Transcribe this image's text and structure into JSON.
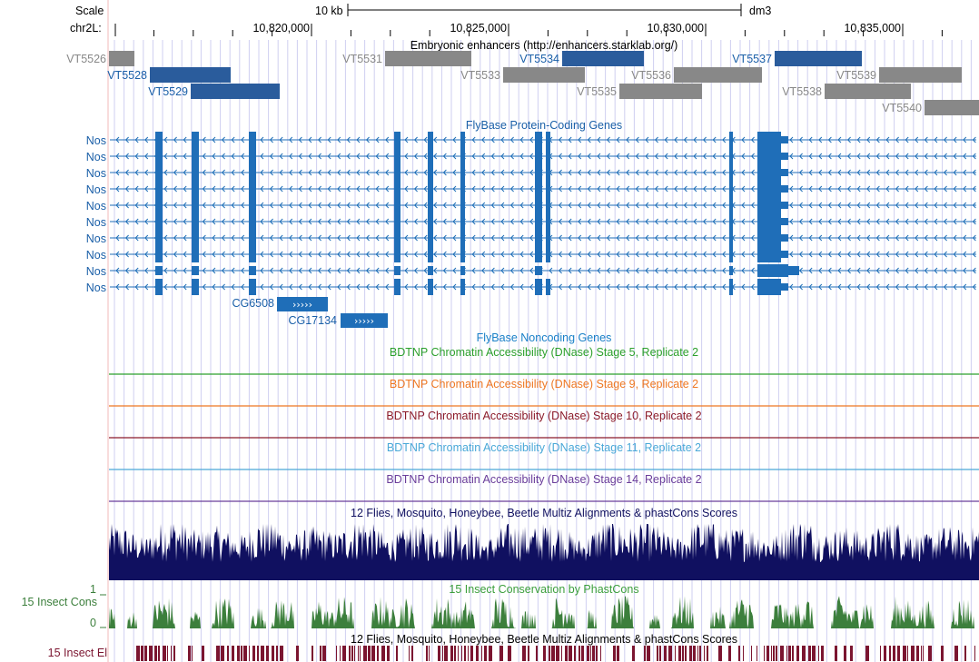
{
  "ruler": {
    "scale_label": "Scale",
    "chrom_label": "chr2L:",
    "scalebar_label": "10 kb",
    "assembly": "dm3",
    "positions": [
      "10,820,000",
      "10,825,000",
      "10,830,000",
      "10,835,000"
    ]
  },
  "tracks": {
    "enhancers": {
      "title": "Embryonic enhancers (http://enhancers.starklab.org/)",
      "items": [
        {
          "name": "VT5526",
          "style": "gray"
        },
        {
          "name": "VT5528",
          "style": "blue"
        },
        {
          "name": "VT5529",
          "style": "blue"
        },
        {
          "name": "VT5531",
          "style": "gray"
        },
        {
          "name": "VT5534",
          "style": "blue"
        },
        {
          "name": "VT5533",
          "style": "gray"
        },
        {
          "name": "VT5535",
          "style": "gray"
        },
        {
          "name": "VT5536",
          "style": "gray"
        },
        {
          "name": "VT5537",
          "style": "blue"
        },
        {
          "name": "VT5539",
          "style": "gray"
        },
        {
          "name": "VT5538",
          "style": "gray"
        },
        {
          "name": "VT5540",
          "style": "gray"
        }
      ]
    },
    "genes": {
      "title": "FlyBase Protein-Coding Genes",
      "transcripts": [
        "Nos",
        "Nos",
        "Nos",
        "Nos",
        "Nos",
        "Nos",
        "Nos",
        "Nos",
        "Nos",
        "Nos"
      ],
      "other_genes": [
        "CG6508",
        "CG17134"
      ]
    },
    "noncoding": {
      "title": "FlyBase Noncoding Genes"
    },
    "dnase": [
      {
        "title": "BDTNP Chromatin Accessibility (DNase) Stage 5, Replicate 2",
        "color": "#2ca02c"
      },
      {
        "title": "BDTNP Chromatin Accessibility (DNase) Stage 9, Replicate 2",
        "color": "#ee7722"
      },
      {
        "title": "BDTNP Chromatin Accessibility (DNase) Stage 10, Replicate 2",
        "color": "#8b1a2a"
      },
      {
        "title": "BDTNP Chromatin Accessibility (DNase) Stage 11, Replicate 2",
        "color": "#4aa8d8"
      },
      {
        "title": "BDTNP Chromatin Accessibility (DNase) Stage 14, Replicate 2",
        "color": "#6a3d9a"
      }
    ],
    "multiz": {
      "title": "12 Flies, Mosquito, Honeybee, Beetle Multiz Alignments & phastCons Scores",
      "color": "#101060"
    },
    "phastcons": {
      "title": "15 Insect Conservation by PhastCons",
      "side_label": "15 Insect Cons",
      "ymax": "1",
      "ymin": "0",
      "color": "#3c7f3c"
    },
    "elements": {
      "title": "12 Flies, Mosquito, Honeybee, Beetle Multiz Alignments & phastCons Scores",
      "side_label": "15 Insect El",
      "color": "#7b1530"
    }
  },
  "colors": {
    "blue": "#1f6eb8",
    "navy_blue": "#2a5c9c",
    "gray": "#888888",
    "label_blue": "#1a5fa8",
    "grid": "#cfcff0"
  }
}
